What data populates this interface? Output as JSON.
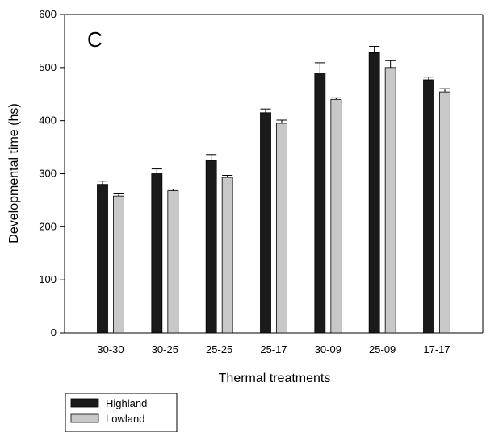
{
  "chart_data": {
    "type": "bar",
    "panel_label": "C",
    "xlabel": "Thermal treatments",
    "ylabel": "Developmental time (hs)",
    "ylim": [
      0,
      600
    ],
    "yticks": [
      0,
      100,
      200,
      300,
      400,
      500,
      600
    ],
    "categories": [
      "30-30",
      "30-25",
      "25-25",
      "25-17",
      "30-09",
      "25-09",
      "17-17"
    ],
    "series": [
      {
        "name": "Highland",
        "color": "#1a1a1a",
        "values": [
          280,
          300,
          325,
          415,
          490,
          528,
          477
        ],
        "errors": [
          6,
          9,
          11,
          7,
          19,
          12,
          5
        ]
      },
      {
        "name": "Lowland",
        "color": "#c8c8c8",
        "values": [
          258,
          268,
          293,
          395,
          440,
          500,
          454
        ],
        "errors": [
          4,
          3,
          4,
          6,
          3,
          13,
          6
        ]
      }
    ],
    "legend": {
      "placement": "bottom-left"
    },
    "grid": false,
    "error_bars": "upper"
  }
}
